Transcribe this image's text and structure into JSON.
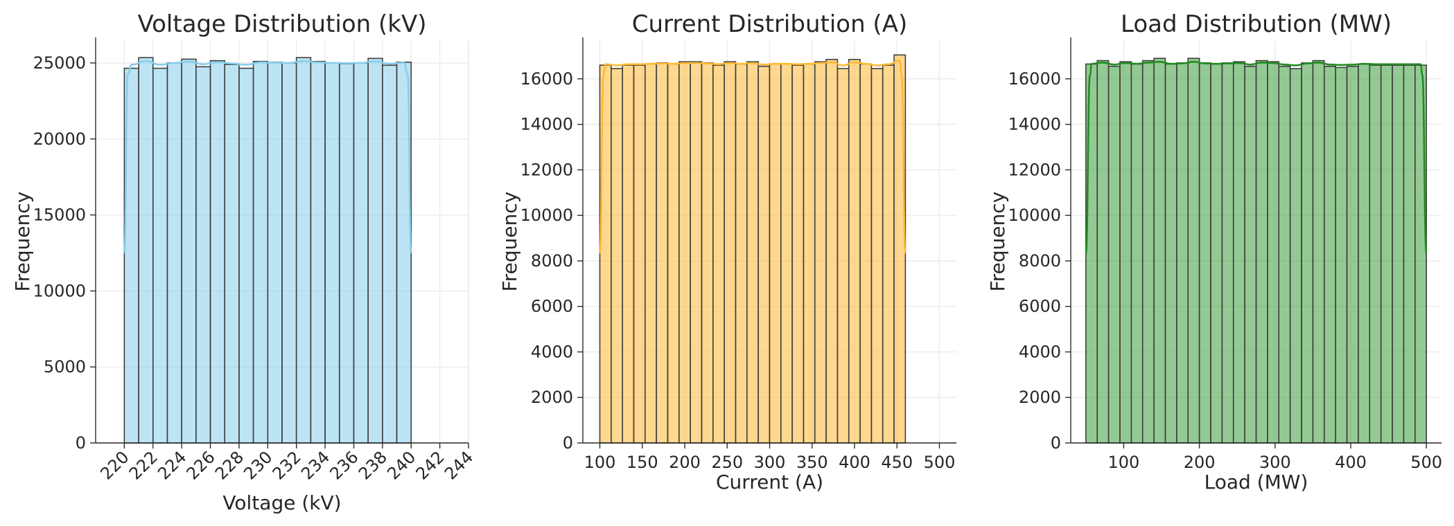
{
  "chart_data": [
    {
      "type": "bar",
      "title": "Voltage Distribution (kV)",
      "xlabel": "Voltage (kV)",
      "ylabel": "Frequency",
      "xlim": [
        218,
        244
      ],
      "ylim": [
        0,
        26500
      ],
      "xticks": [
        220,
        222,
        224,
        226,
        228,
        230,
        232,
        234,
        236,
        238,
        240,
        242,
        244
      ],
      "xtick_rotation": 45,
      "yticks": [
        0,
        5000,
        10000,
        15000,
        20000,
        25000
      ],
      "grid": true,
      "kde": true,
      "color": "#87ceeb",
      "line_color": "#87ceeb",
      "bins": {
        "start": 220,
        "width": 1,
        "values": [
          24650,
          25350,
          24650,
          25000,
          25250,
          24750,
          25150,
          24900,
          24650,
          25100,
          25050,
          25000,
          25350,
          25100,
          25000,
          24950,
          25000,
          25300,
          24850,
          25050
        ]
      }
    },
    {
      "type": "bar",
      "title": "Current Distribution (A)",
      "xlabel": "Current (A)",
      "ylabel": "Frequency",
      "xlim": [
        80,
        520
      ],
      "ylim": [
        0,
        17700
      ],
      "xticks": [
        100,
        150,
        200,
        250,
        300,
        350,
        400,
        450,
        500
      ],
      "xtick_rotation": 0,
      "yticks": [
        0,
        2000,
        4000,
        6000,
        8000,
        10000,
        12000,
        14000,
        16000
      ],
      "grid": true,
      "kde": true,
      "color": "#ffb833",
      "line_color": "#ffb833",
      "bins": {
        "start": 100,
        "width": 13.33,
        "values": [
          16600,
          16450,
          16600,
          16600,
          16650,
          16700,
          16650,
          16750,
          16750,
          16700,
          16600,
          16750,
          16650,
          16750,
          16550,
          16650,
          16650,
          16600,
          16650,
          16750,
          16850,
          16450,
          16850,
          16650,
          16450,
          16600,
          17050
        ]
      }
    },
    {
      "type": "bar",
      "title": "Load Distribution (MW)",
      "xlabel": "Load (MW)",
      "ylabel": "Frequency",
      "xlim": [
        30,
        520
      ],
      "ylim": [
        0,
        17700
      ],
      "xticks": [
        100,
        200,
        300,
        400,
        500
      ],
      "xtick_rotation": 0,
      "yticks": [
        0,
        2000,
        4000,
        6000,
        8000,
        10000,
        12000,
        14000,
        16000
      ],
      "grid": true,
      "kde": true,
      "color": "#3a9e3a",
      "line_color": "#228b22",
      "bins": {
        "start": 50,
        "width": 15,
        "values": [
          16650,
          16800,
          16550,
          16750,
          16650,
          16800,
          16900,
          16650,
          16700,
          16900,
          16700,
          16650,
          16700,
          16750,
          16550,
          16800,
          16750,
          16550,
          16450,
          16700,
          16800,
          16550,
          16500,
          16550,
          16650,
          16600,
          16600,
          16600,
          16600,
          16600
        ]
      }
    }
  ]
}
